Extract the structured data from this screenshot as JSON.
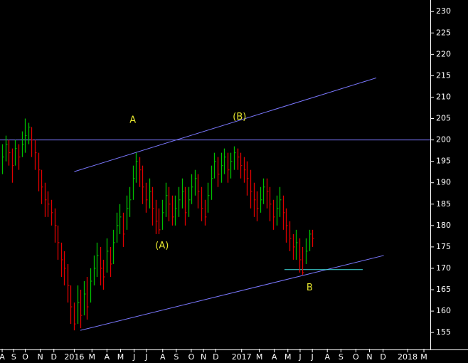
{
  "chart_data": {
    "type": "hlc",
    "colors": {
      "up": "#00c000",
      "down": "#e00000"
    },
    "x": [
      0,
      0.24,
      0.48,
      0.72,
      0.96,
      1.2,
      1.44,
      1.68,
      1.92,
      2.16,
      2.4,
      2.64,
      2.88,
      3.12,
      3.36,
      3.6,
      3.84,
      4.08,
      4.32,
      4.56,
      4.8,
      5.04,
      5.28,
      5.52,
      5.76,
      6,
      6.24,
      6.48,
      6.72,
      6.96,
      7.2,
      7.44,
      7.68,
      7.92,
      8.16,
      8.4,
      8.64,
      8.88,
      9.12,
      9.36,
      9.6,
      9.84,
      10.08,
      10.32,
      10.56,
      10.8,
      11.04,
      11.28,
      11.52,
      11.76,
      12,
      12.24,
      12.48,
      12.72,
      12.96,
      13.2,
      13.44,
      13.68,
      13.92,
      14.16,
      14.4,
      14.64,
      14.88,
      15.12,
      15.36,
      15.6,
      15.84,
      16.08,
      16.32,
      16.56,
      16.8,
      17.04,
      17.28,
      17.52,
      17.76,
      18,
      18.24,
      18.48,
      18.72,
      18.96,
      19.2,
      19.44,
      19.68,
      19.92,
      20.16,
      20.4,
      20.64,
      20.88,
      21.12,
      21.36,
      21.6,
      21.84,
      22.08,
      22.32,
      22.56,
      22.8
    ],
    "high": [
      199,
      201,
      200,
      198,
      200,
      199,
      202,
      205,
      204,
      203,
      200,
      197,
      193,
      190,
      188,
      186,
      184,
      180,
      176,
      174,
      171,
      166,
      162,
      166,
      165,
      167,
      168,
      170,
      173,
      176,
      175,
      172,
      177,
      175,
      179,
      183,
      185,
      183,
      187,
      189,
      194,
      197,
      196,
      194,
      190,
      191,
      189,
      186,
      184,
      186,
      190,
      189,
      187,
      187,
      189,
      191,
      189,
      189,
      192,
      193,
      192,
      189,
      186,
      190,
      194,
      197,
      196,
      197,
      198,
      197,
      197,
      198.5,
      198,
      197,
      196,
      195,
      193,
      190,
      188,
      189,
      191,
      191,
      189,
      186,
      187,
      189,
      187,
      184,
      181,
      178,
      179,
      177,
      175,
      177,
      179,
      179
    ],
    "low": [
      192,
      195,
      194,
      190,
      194,
      193,
      196,
      197,
      199,
      196,
      193,
      188,
      185,
      182,
      182,
      180,
      176,
      172,
      168,
      166,
      162,
      157,
      155.5,
      157,
      156,
      159,
      158,
      162,
      166,
      168,
      166,
      165,
      169,
      168,
      171,
      176,
      178,
      175,
      179,
      182,
      186,
      190,
      189,
      185,
      183,
      184,
      180,
      178,
      178,
      179,
      182,
      181,
      180,
      180,
      182,
      184,
      180,
      182,
      185,
      187,
      184,
      181,
      180,
      183,
      186,
      191,
      189,
      190,
      192,
      190,
      191,
      193,
      193,
      191,
      190,
      187,
      184,
      182,
      181,
      183,
      185,
      184,
      181,
      179,
      180,
      182,
      179,
      176,
      174,
      172,
      172,
      169,
      168.5,
      171,
      174,
      175
    ],
    "close": [
      196,
      199,
      197,
      194,
      198,
      196,
      199,
      201,
      203,
      200,
      197,
      193,
      189,
      186,
      185,
      183,
      180,
      176,
      172,
      170,
      166,
      161,
      157,
      162,
      159,
      164,
      161,
      167,
      170,
      173,
      170,
      168,
      174,
      171,
      176,
      180,
      182,
      178,
      184,
      186,
      191,
      195,
      193,
      189,
      186,
      188,
      184,
      181,
      179,
      183,
      187,
      185,
      182,
      184,
      186,
      188,
      183,
      186,
      189,
      191,
      188,
      184,
      182,
      187,
      191,
      195,
      192,
      194,
      196,
      193,
      195,
      197,
      196,
      194,
      193,
      191,
      188,
      186,
      184,
      186,
      189,
      188,
      185,
      182,
      184,
      186,
      183,
      180,
      177,
      175,
      176,
      172,
      169,
      174,
      178,
      177
    ],
    "xlim": [
      -0.16,
      31.47
    ],
    "ylim": [
      151.2,
      232.7
    ],
    "xticks": [
      {
        "value": 0,
        "label": "A"
      },
      {
        "value": 0.85,
        "label": "S"
      },
      {
        "value": 1.7,
        "label": "O"
      },
      {
        "value": 2.8,
        "label": "N"
      },
      {
        "value": 3.8,
        "label": "D"
      },
      {
        "value": 5.3,
        "label": "2016"
      },
      {
        "value": 6.6,
        "label": "M"
      },
      {
        "value": 7.7,
        "label": "A"
      },
      {
        "value": 8.7,
        "label": "M"
      },
      {
        "value": 9.7,
        "label": "J"
      },
      {
        "value": 10.6,
        "label": "J"
      },
      {
        "value": 11.8,
        "label": "A"
      },
      {
        "value": 12.8,
        "label": "S"
      },
      {
        "value": 13.9,
        "label": "O"
      },
      {
        "value": 14.8,
        "label": "N"
      },
      {
        "value": 15.7,
        "label": "D"
      },
      {
        "value": 17.6,
        "label": "2017"
      },
      {
        "value": 18.9,
        "label": "M"
      },
      {
        "value": 20,
        "label": "A"
      },
      {
        "value": 21,
        "label": "M"
      },
      {
        "value": 21.9,
        "label": "J"
      },
      {
        "value": 22.8,
        "label": "J"
      },
      {
        "value": 23.9,
        "label": "A"
      },
      {
        "value": 24.9,
        "label": "S"
      },
      {
        "value": 26,
        "label": "O"
      },
      {
        "value": 27,
        "label": "N"
      },
      {
        "value": 28,
        "label": "D"
      },
      {
        "value": 29.8,
        "label": "2018"
      },
      {
        "value": 31,
        "label": "M"
      }
    ],
    "yticks": [
      155,
      160,
      165,
      170,
      175,
      180,
      185,
      190,
      195,
      200,
      205,
      210,
      215,
      220,
      225,
      230
    ],
    "lines": [
      {
        "x1": 5.3,
        "y1": 192.6,
        "x2": 27.5,
        "y2": 214.5,
        "color": "#7b78ff"
      },
      {
        "x1": -0.16,
        "y1": 200,
        "x2": 31.47,
        "y2": 200,
        "color": "#7b78ff"
      },
      {
        "x1": 5.75,
        "y1": 155.5,
        "x2": 28.05,
        "y2": 173,
        "color": "#7b78ff"
      },
      {
        "x1": 20.75,
        "y1": 169.7,
        "x2": 26.5,
        "y2": 169.7,
        "color": "#40e0e0"
      }
    ],
    "annotations": [
      {
        "text": "A",
        "x": 9.6,
        "y": 204.6
      },
      {
        "text": "(A)",
        "x": 11.75,
        "y": 175.2
      },
      {
        "text": "(B)",
        "x": 17.45,
        "y": 205.3
      },
      {
        "text": "B",
        "x": 22.6,
        "y": 165.4
      }
    ]
  }
}
